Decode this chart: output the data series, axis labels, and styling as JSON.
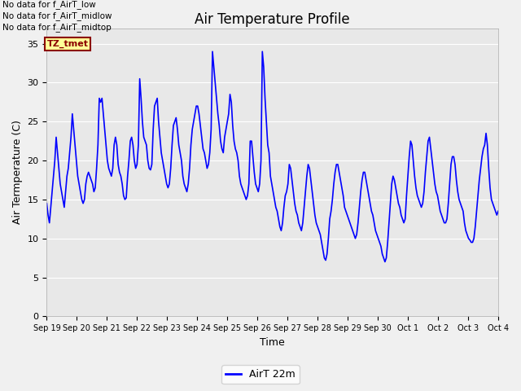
{
  "title": "Air Temperature Profile",
  "xlabel": "Time",
  "ylabel": "Air Termperature (C)",
  "ylim": [
    0,
    37
  ],
  "yticks": [
    0,
    5,
    10,
    15,
    20,
    25,
    30,
    35
  ],
  "line_color": "blue",
  "line_width": 1.2,
  "background_color": "#f0f0f0",
  "plot_bg_color": "#e8e8e8",
  "legend_label": "AirT 22m",
  "no_data_texts": [
    "No data for f_AirT_low",
    "No data for f_AirT_midlow",
    "No data for f_AirT_midtop"
  ],
  "tz_label": "TZ_tmet",
  "x_labels": [
    "Sep 19",
    "Sep 20",
    "Sep 21",
    "Sep 22",
    "Sep 23",
    "Sep 24",
    "Sep 25",
    "Sep 26",
    "Sep 27",
    "Sep 28",
    "Sep 29",
    "Sep 30",
    "Oct 1",
    "Oct 2",
    "Oct 3",
    "Oct 4"
  ],
  "temperature_data": [
    14.5,
    13.0,
    12.0,
    14.0,
    16.0,
    18.0,
    20.0,
    23.0,
    21.0,
    19.0,
    17.0,
    16.0,
    15.0,
    14.0,
    16.0,
    18.0,
    19.0,
    21.0,
    23.0,
    26.0,
    24.0,
    22.0,
    20.0,
    18.0,
    17.0,
    16.0,
    15.0,
    14.5,
    15.0,
    17.0,
    18.0,
    18.5,
    18.0,
    17.5,
    17.0,
    16.0,
    16.5,
    19.0,
    22.0,
    28.0,
    27.5,
    28.0,
    26.0,
    24.0,
    22.0,
    20.0,
    19.0,
    18.5,
    18.0,
    19.0,
    22.0,
    23.0,
    22.0,
    19.5,
    18.5,
    18.0,
    17.0,
    15.5,
    15.0,
    15.2,
    18.0,
    20.0,
    22.5,
    23.0,
    22.0,
    20.0,
    19.0,
    19.5,
    22.0,
    30.5,
    28.0,
    25.0,
    23.0,
    22.5,
    22.0,
    20.0,
    19.0,
    18.8,
    19.5,
    24.0,
    27.0,
    27.5,
    28.0,
    25.0,
    23.0,
    21.0,
    20.0,
    19.0,
    18.0,
    17.0,
    16.5,
    17.0,
    19.0,
    22.0,
    24.5,
    25.0,
    25.5,
    24.0,
    22.0,
    21.0,
    20.0,
    18.0,
    17.0,
    16.5,
    16.0,
    17.0,
    19.0,
    22.0,
    24.0,
    25.0,
    26.0,
    27.0,
    27.0,
    26.0,
    24.5,
    23.0,
    21.5,
    21.0,
    20.0,
    19.0,
    19.5,
    21.0,
    24.0,
    34.0,
    32.0,
    30.0,
    28.0,
    26.0,
    24.5,
    22.5,
    21.5,
    21.0,
    23.0,
    24.0,
    25.0,
    26.0,
    28.5,
    27.5,
    24.5,
    22.5,
    21.5,
    21.0,
    20.0,
    18.0,
    17.0,
    16.5,
    16.0,
    15.5,
    15.0,
    15.5,
    17.0,
    22.5,
    22.5,
    20.5,
    18.5,
    17.0,
    16.5,
    16.0,
    17.0,
    20.0,
    34.0,
    32.0,
    28.0,
    25.0,
    22.0,
    21.0,
    18.0,
    17.0,
    16.0,
    15.0,
    14.0,
    13.5,
    12.5,
    11.5,
    11.0,
    12.0,
    14.0,
    15.5,
    16.0,
    17.0,
    19.5,
    19.0,
    17.5,
    16.0,
    14.5,
    13.5,
    13.0,
    12.0,
    11.5,
    11.0,
    12.0,
    14.0,
    16.0,
    18.0,
    19.5,
    19.0,
    17.5,
    16.0,
    14.5,
    13.0,
    12.0,
    11.5,
    11.0,
    10.5,
    9.5,
    8.5,
    7.5,
    7.2,
    8.0,
    10.0,
    12.5,
    13.5,
    15.0,
    17.0,
    18.5,
    19.5,
    19.5,
    18.5,
    17.5,
    16.5,
    15.5,
    14.0,
    13.5,
    13.0,
    12.5,
    12.0,
    11.5,
    11.0,
    10.5,
    10.0,
    10.5,
    12.0,
    14.0,
    16.0,
    17.5,
    18.5,
    18.5,
    17.5,
    16.5,
    15.5,
    14.5,
    13.5,
    13.0,
    12.0,
    11.0,
    10.5,
    10.0,
    9.5,
    9.0,
    8.0,
    7.5,
    7.0,
    7.5,
    9.5,
    12.0,
    14.5,
    17.0,
    18.0,
    17.5,
    16.5,
    15.5,
    14.5,
    14.0,
    13.0,
    12.5,
    12.0,
    12.5,
    15.5,
    18.0,
    20.5,
    22.5,
    22.0,
    20.0,
    18.0,
    16.5,
    15.5,
    15.0,
    14.5,
    14.0,
    14.5,
    16.0,
    18.5,
    20.5,
    22.5,
    23.0,
    21.5,
    20.0,
    18.5,
    17.0,
    16.0,
    15.5,
    14.5,
    13.5,
    13.0,
    12.5,
    12.0,
    12.0,
    12.5,
    14.5,
    17.0,
    19.5,
    20.5,
    20.5,
    19.5,
    17.5,
    16.0,
    15.0,
    14.5,
    14.0,
    13.5,
    12.0,
    11.0,
    10.5,
    10.0,
    9.8,
    9.5,
    9.5,
    10.0,
    11.5,
    13.5,
    15.5,
    17.5,
    19.0,
    20.5,
    21.5,
    22.0,
    23.5,
    22.0,
    19.0,
    16.5,
    15.0,
    14.5,
    14.0,
    13.5,
    13.0,
    13.5
  ]
}
